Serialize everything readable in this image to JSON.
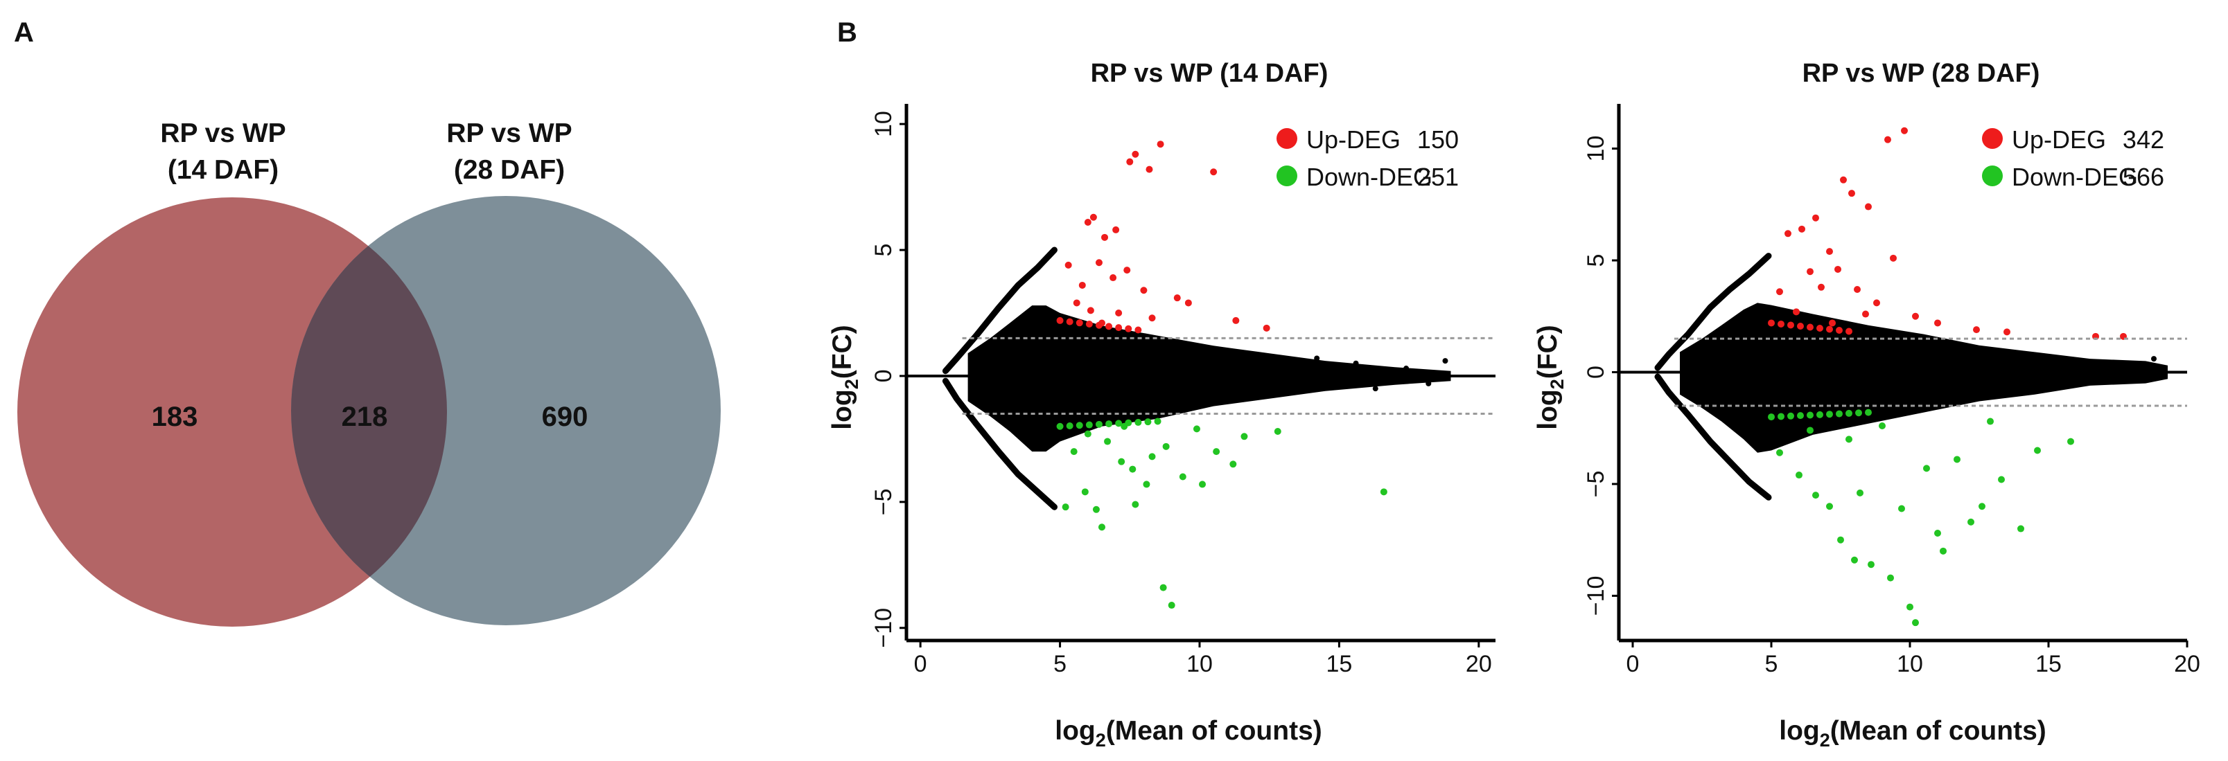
{
  "panels": {
    "a_label": "A",
    "b_label": "B"
  },
  "venn": {
    "left_title_line1": "RP vs WP",
    "left_title_line2": "(14 DAF)",
    "right_title_line1": "RP vs WP",
    "right_title_line2": "(28 DAF)",
    "left_only": "183",
    "overlap": "218",
    "right_only": "690",
    "colors": {
      "left": "#b36566",
      "right": "#7e8f99",
      "overlap": "#5f4a56"
    }
  },
  "chart_data": [
    {
      "type": "scatter",
      "title": "RP vs WP (14 DAF)",
      "xlabel_main": "log",
      "xlabel_sub": "2",
      "xlabel_rest": "(Mean of counts)",
      "ylabel_main": "log",
      "ylabel_sub": "2",
      "ylabel_rest": "(FC)",
      "xlim": [
        -0.5,
        20.6
      ],
      "ylim": [
        -10.5,
        10.8
      ],
      "xticks": [
        0,
        5,
        10,
        15,
        20
      ],
      "yticks": [
        -10,
        -5,
        0,
        5,
        10
      ],
      "threshold": 1.5,
      "legend": [
        {
          "name": "Up-DEG",
          "count": "150",
          "color": "#ee1c1c"
        },
        {
          "name": "Down-DEG",
          "count": "251",
          "color": "#22c422"
        }
      ],
      "up_points": [
        [
          6.0,
          6.1
        ],
        [
          6.2,
          6.3
        ],
        [
          6.6,
          5.5
        ],
        [
          7.0,
          5.8
        ],
        [
          7.5,
          8.5
        ],
        [
          7.7,
          8.8
        ],
        [
          8.2,
          8.2
        ],
        [
          8.6,
          9.2
        ],
        [
          9.2,
          3.1
        ],
        [
          10.5,
          8.1
        ],
        [
          6.4,
          4.5
        ],
        [
          5.3,
          4.4
        ],
        [
          5.8,
          3.6
        ],
        [
          6.9,
          3.9
        ],
        [
          7.4,
          4.2
        ],
        [
          8.0,
          3.4
        ],
        [
          9.6,
          2.9
        ],
        [
          11.3,
          2.2
        ],
        [
          6.1,
          2.6
        ],
        [
          6.5,
          2.1
        ],
        [
          5.6,
          2.9
        ],
        [
          7.1,
          2.5
        ],
        [
          8.3,
          2.3
        ],
        [
          12.4,
          1.9
        ]
      ],
      "down_points": [
        [
          5.2,
          -5.2
        ],
        [
          5.9,
          -4.6
        ],
        [
          6.3,
          -5.3
        ],
        [
          7.2,
          -3.4
        ],
        [
          7.6,
          -3.7
        ],
        [
          8.1,
          -4.3
        ],
        [
          8.3,
          -3.2
        ],
        [
          8.7,
          -8.4
        ],
        [
          9.0,
          -9.1
        ],
        [
          9.4,
          -4.0
        ],
        [
          10.1,
          -4.3
        ],
        [
          10.6,
          -3.0
        ],
        [
          11.2,
          -3.5
        ],
        [
          12.8,
          -2.2
        ],
        [
          16.6,
          -4.6
        ],
        [
          6.0,
          -2.3
        ],
        [
          6.7,
          -2.6
        ],
        [
          5.5,
          -3.0
        ],
        [
          7.3,
          -2.0
        ],
        [
          8.8,
          -2.8
        ],
        [
          9.9,
          -2.1
        ],
        [
          11.6,
          -2.4
        ],
        [
          6.5,
          -6.0
        ],
        [
          7.7,
          -5.1
        ]
      ],
      "band": {
        "up_limit": [
          [
            0.9,
            0.2
          ],
          [
            1.3,
            0.7
          ],
          [
            2.0,
            1.6
          ],
          [
            2.8,
            2.7
          ],
          [
            3.5,
            3.6
          ],
          [
            4.2,
            4.3
          ],
          [
            4.8,
            5.0
          ]
        ],
        "down_limit": [
          [
            0.9,
            -0.2
          ],
          [
            1.3,
            -0.9
          ],
          [
            2.0,
            -1.9
          ],
          [
            2.8,
            -3.0
          ],
          [
            3.5,
            -3.9
          ],
          [
            4.2,
            -4.6
          ],
          [
            4.8,
            -5.2
          ]
        ],
        "cloud_top": [
          [
            1.7,
            0.9
          ],
          [
            2.5,
            1.5
          ],
          [
            3.2,
            2.1
          ],
          [
            4.0,
            2.8
          ],
          [
            4.5,
            2.8
          ],
          [
            5.0,
            2.5
          ],
          [
            6.5,
            2.0
          ],
          [
            8.5,
            1.6
          ],
          [
            10.5,
            1.2
          ],
          [
            12.5,
            0.9
          ],
          [
            14.5,
            0.6
          ],
          [
            17.0,
            0.35
          ],
          [
            19.0,
            0.2
          ]
        ],
        "cloud_bottom": [
          [
            19.0,
            -0.2
          ],
          [
            17.0,
            -0.35
          ],
          [
            14.5,
            -0.6
          ],
          [
            12.5,
            -0.9
          ],
          [
            10.5,
            -1.2
          ],
          [
            8.5,
            -1.7
          ],
          [
            6.5,
            -2.0
          ],
          [
            5.0,
            -2.6
          ],
          [
            4.5,
            -3.0
          ],
          [
            4.0,
            -3.0
          ],
          [
            3.2,
            -2.2
          ],
          [
            2.5,
            -1.6
          ],
          [
            1.7,
            -1.0
          ]
        ]
      }
    },
    {
      "type": "scatter",
      "title": "RP vs WP (28 DAF)",
      "xlabel_main": "log",
      "xlabel_sub": "2",
      "xlabel_rest": "(Mean of counts)",
      "ylabel_main": "log",
      "ylabel_sub": "2",
      "ylabel_rest": "(FC)",
      "xlim": [
        -0.5,
        20.0
      ],
      "ylim": [
        -12.0,
        12.0
      ],
      "xticks": [
        0,
        5,
        10,
        15,
        20
      ],
      "yticks": [
        -10,
        -5,
        0,
        5,
        10
      ],
      "threshold": 1.5,
      "legend": [
        {
          "name": "Up-DEG",
          "count": "342",
          "color": "#ee1c1c"
        },
        {
          "name": "Down-DEG",
          "count": "566",
          "color": "#22c422"
        }
      ],
      "up_points": [
        [
          5.6,
          6.2
        ],
        [
          6.1,
          6.4
        ],
        [
          6.6,
          6.9
        ],
        [
          7.1,
          5.4
        ],
        [
          7.6,
          8.6
        ],
        [
          7.9,
          8.0
        ],
        [
          8.5,
          7.4
        ],
        [
          9.2,
          10.4
        ],
        [
          9.8,
          10.8
        ],
        [
          6.4,
          4.5
        ],
        [
          6.8,
          3.8
        ],
        [
          7.4,
          4.6
        ],
        [
          8.1,
          3.7
        ],
        [
          8.8,
          3.1
        ],
        [
          9.4,
          5.1
        ],
        [
          10.2,
          2.5
        ],
        [
          11.0,
          2.2
        ],
        [
          5.3,
          3.6
        ],
        [
          5.9,
          2.7
        ],
        [
          7.2,
          2.2
        ],
        [
          8.4,
          2.6
        ],
        [
          12.4,
          1.9
        ],
        [
          13.5,
          1.8
        ],
        [
          16.7,
          1.6
        ],
        [
          17.7,
          1.6
        ]
      ],
      "down_points": [
        [
          5.3,
          -3.6
        ],
        [
          6.0,
          -4.6
        ],
        [
          6.6,
          -5.5
        ],
        [
          7.1,
          -6.0
        ],
        [
          7.5,
          -7.5
        ],
        [
          8.0,
          -8.4
        ],
        [
          8.6,
          -8.6
        ],
        [
          9.3,
          -9.2
        ],
        [
          10.0,
          -10.5
        ],
        [
          10.2,
          -11.2
        ],
        [
          11.2,
          -8.0
        ],
        [
          12.2,
          -6.7
        ],
        [
          12.6,
          -6.0
        ],
        [
          13.3,
          -4.8
        ],
        [
          14.0,
          -7.0
        ],
        [
          14.6,
          -3.5
        ],
        [
          15.8,
          -3.1
        ],
        [
          9.7,
          -6.1
        ],
        [
          10.6,
          -4.3
        ],
        [
          11.7,
          -3.9
        ],
        [
          6.4,
          -2.6
        ],
        [
          7.8,
          -3.0
        ],
        [
          9.0,
          -2.4
        ],
        [
          12.9,
          -2.2
        ],
        [
          11.0,
          -7.2
        ],
        [
          8.2,
          -5.4
        ]
      ],
      "band": {
        "up_limit": [
          [
            0.9,
            0.2
          ],
          [
            1.3,
            0.8
          ],
          [
            2.0,
            1.7
          ],
          [
            2.8,
            2.9
          ],
          [
            3.5,
            3.7
          ],
          [
            4.2,
            4.4
          ],
          [
            4.9,
            5.2
          ]
        ],
        "down_limit": [
          [
            0.9,
            -0.2
          ],
          [
            1.3,
            -0.9
          ],
          [
            2.0,
            -1.9
          ],
          [
            2.8,
            -3.1
          ],
          [
            3.5,
            -4.0
          ],
          [
            4.2,
            -4.9
          ],
          [
            4.9,
            -5.6
          ]
        ],
        "cloud_top": [
          [
            1.7,
            0.9
          ],
          [
            2.5,
            1.5
          ],
          [
            3.2,
            2.1
          ],
          [
            4.0,
            2.8
          ],
          [
            4.5,
            3.1
          ],
          [
            5.0,
            3.0
          ],
          [
            6.5,
            2.6
          ],
          [
            8.5,
            2.1
          ],
          [
            10.5,
            1.7
          ],
          [
            12.5,
            1.2
          ],
          [
            14.5,
            0.9
          ],
          [
            16.5,
            0.6
          ],
          [
            18.5,
            0.5
          ],
          [
            19.3,
            0.3
          ]
        ],
        "cloud_bottom": [
          [
            19.3,
            -0.3
          ],
          [
            18.5,
            -0.5
          ],
          [
            16.5,
            -0.6
          ],
          [
            14.5,
            -1.0
          ],
          [
            12.5,
            -1.3
          ],
          [
            10.5,
            -1.8
          ],
          [
            8.5,
            -2.3
          ],
          [
            6.5,
            -2.8
          ],
          [
            5.0,
            -3.5
          ],
          [
            4.5,
            -3.6
          ],
          [
            4.0,
            -3.0
          ],
          [
            3.2,
            -2.2
          ],
          [
            2.5,
            -1.6
          ],
          [
            1.7,
            -1.0
          ]
        ]
      }
    }
  ]
}
